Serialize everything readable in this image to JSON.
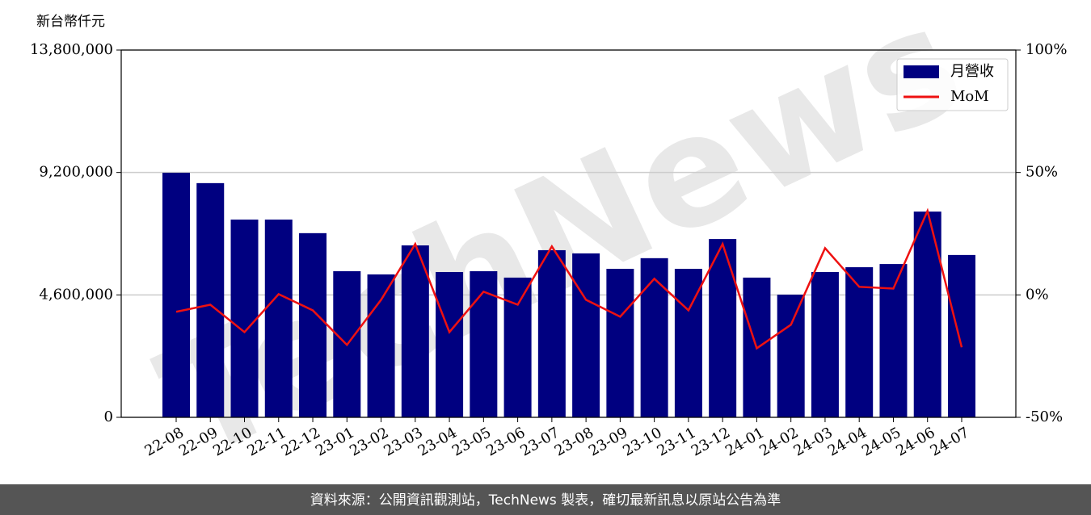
{
  "chart_data": {
    "type": "bar_line",
    "unit_label": "新台幣仟元",
    "watermark": "TechNews",
    "footer": "資料來源：公開資訊觀測站，TechNews 製表，確切最新訊息以原站公告為準",
    "categories": [
      "22-08",
      "22-09",
      "22-10",
      "22-11",
      "22-12",
      "23-01",
      "23-02",
      "23-03",
      "23-04",
      "23-05",
      "23-06",
      "23-07",
      "23-08",
      "23-09",
      "23-10",
      "23-11",
      "23-12",
      "24-01",
      "24-02",
      "24-03",
      "24-04",
      "24-05",
      "24-06",
      "24-07"
    ],
    "series": [
      {
        "name": "月營收",
        "type": "bar",
        "color": "#000080",
        "values": [
          9190000,
          8800000,
          7430000,
          7430000,
          6920000,
          5490000,
          5370000,
          6460000,
          5460000,
          5490000,
          5250000,
          6280000,
          6160000,
          5580000,
          5980000,
          5580000,
          6700000,
          5250000,
          4610000,
          5460000,
          5640000,
          5760000,
          7730000,
          6100000
        ]
      },
      {
        "name": "MoM",
        "type": "line",
        "axis": "y2",
        "color": "#ee1111",
        "values": [
          -6.9,
          -4.0,
          -15.2,
          0.3,
          -6.3,
          -20.4,
          -2.0,
          20.8,
          -15.2,
          1.3,
          -4.0,
          19.8,
          -2.0,
          -8.9,
          6.6,
          -6.3,
          20.8,
          -21.8,
          -12.2,
          19.1,
          3.3,
          2.6,
          34.3,
          -21.4
        ]
      }
    ],
    "ylim": [
      0,
      13800000
    ],
    "yticks": [
      0,
      {
        "value": 4600000,
        "label": "4,600,000"
      },
      {
        "value": 9200000,
        "label": "9,200,000"
      },
      {
        "value": 13800000,
        "label": "13,800,000"
      }
    ],
    "y2lim": [
      -50,
      100
    ],
    "y2ticks": [
      {
        "value": -50,
        "label": "-50%"
      },
      {
        "value": 0,
        "label": "0%"
      },
      {
        "value": 50,
        "label": "50%"
      },
      {
        "value": 100,
        "label": "100%"
      }
    ],
    "grid": true,
    "legend": "upper right"
  }
}
